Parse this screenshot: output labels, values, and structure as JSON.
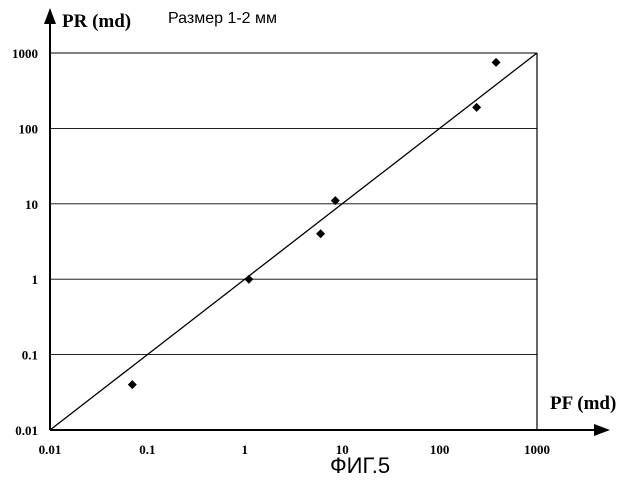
{
  "chart_data": {
    "type": "scatter",
    "title": "Размер 1-2 мм",
    "xlabel": "PF (md)",
    "ylabel": "PR (md)",
    "x_scale": "log",
    "y_scale": "log",
    "xlim": [
      0.01,
      1000
    ],
    "ylim": [
      0.01,
      1000
    ],
    "x_ticks": [
      "0.01",
      "0.1",
      "1",
      "10",
      "100",
      "1000"
    ],
    "y_ticks": [
      "0.01",
      "0.1",
      "1",
      "10",
      "100",
      "1000"
    ],
    "grid": "horizontal",
    "points": [
      {
        "x": 0.07,
        "y": 0.04
      },
      {
        "x": 1.1,
        "y": 1.0
      },
      {
        "x": 6,
        "y": 4
      },
      {
        "x": 8.5,
        "y": 11
      },
      {
        "x": 240,
        "y": 190
      },
      {
        "x": 380,
        "y": 750
      }
    ],
    "reference_line": {
      "from": [
        0.01,
        0.01
      ],
      "to": [
        1000,
        1000
      ]
    },
    "caption": "ФИГ.5"
  }
}
